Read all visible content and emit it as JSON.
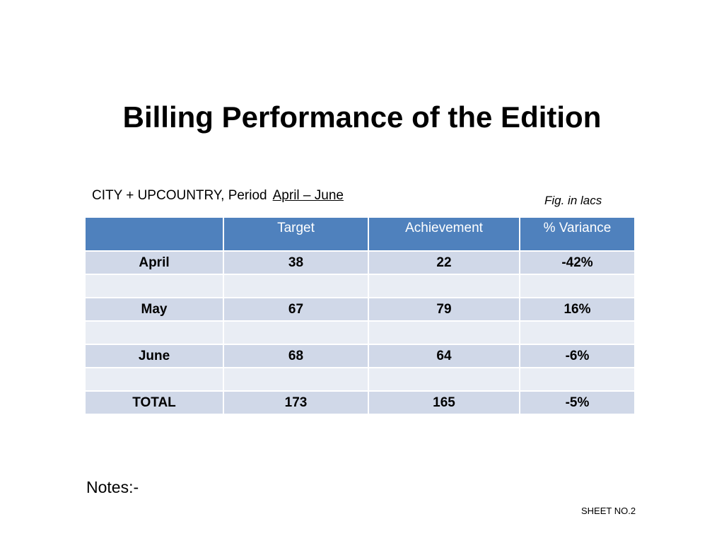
{
  "title": "Billing Performance of the Edition",
  "subtitle": {
    "scope": "CITY + UPCOUNTRY, Period",
    "period": "April – June"
  },
  "unit_note": "Fig. in lacs",
  "table": {
    "headers": [
      "",
      "Target",
      "Achievement",
      "% Variance"
    ],
    "rows": [
      {
        "label": "April",
        "target": "38",
        "achievement": "22",
        "variance": "-42%"
      },
      {
        "label": "",
        "target": "",
        "achievement": "",
        "variance": ""
      },
      {
        "label": "May",
        "target": "67",
        "achievement": "79",
        "variance": "16%"
      },
      {
        "label": "",
        "target": "",
        "achievement": "",
        "variance": ""
      },
      {
        "label": "June",
        "target": "68",
        "achievement": "64",
        "variance": "-6%"
      },
      {
        "label": "",
        "target": "",
        "achievement": "",
        "variance": ""
      },
      {
        "label": "TOTAL",
        "target": "173",
        "achievement": "165",
        "variance": "-5%"
      }
    ]
  },
  "notes_label": "Notes:-",
  "sheet_label": "SHEET NO.2",
  "colors": {
    "header_bg": "#4f81bd",
    "row_dark": "#d0d8e8",
    "row_light": "#e9edf4"
  }
}
